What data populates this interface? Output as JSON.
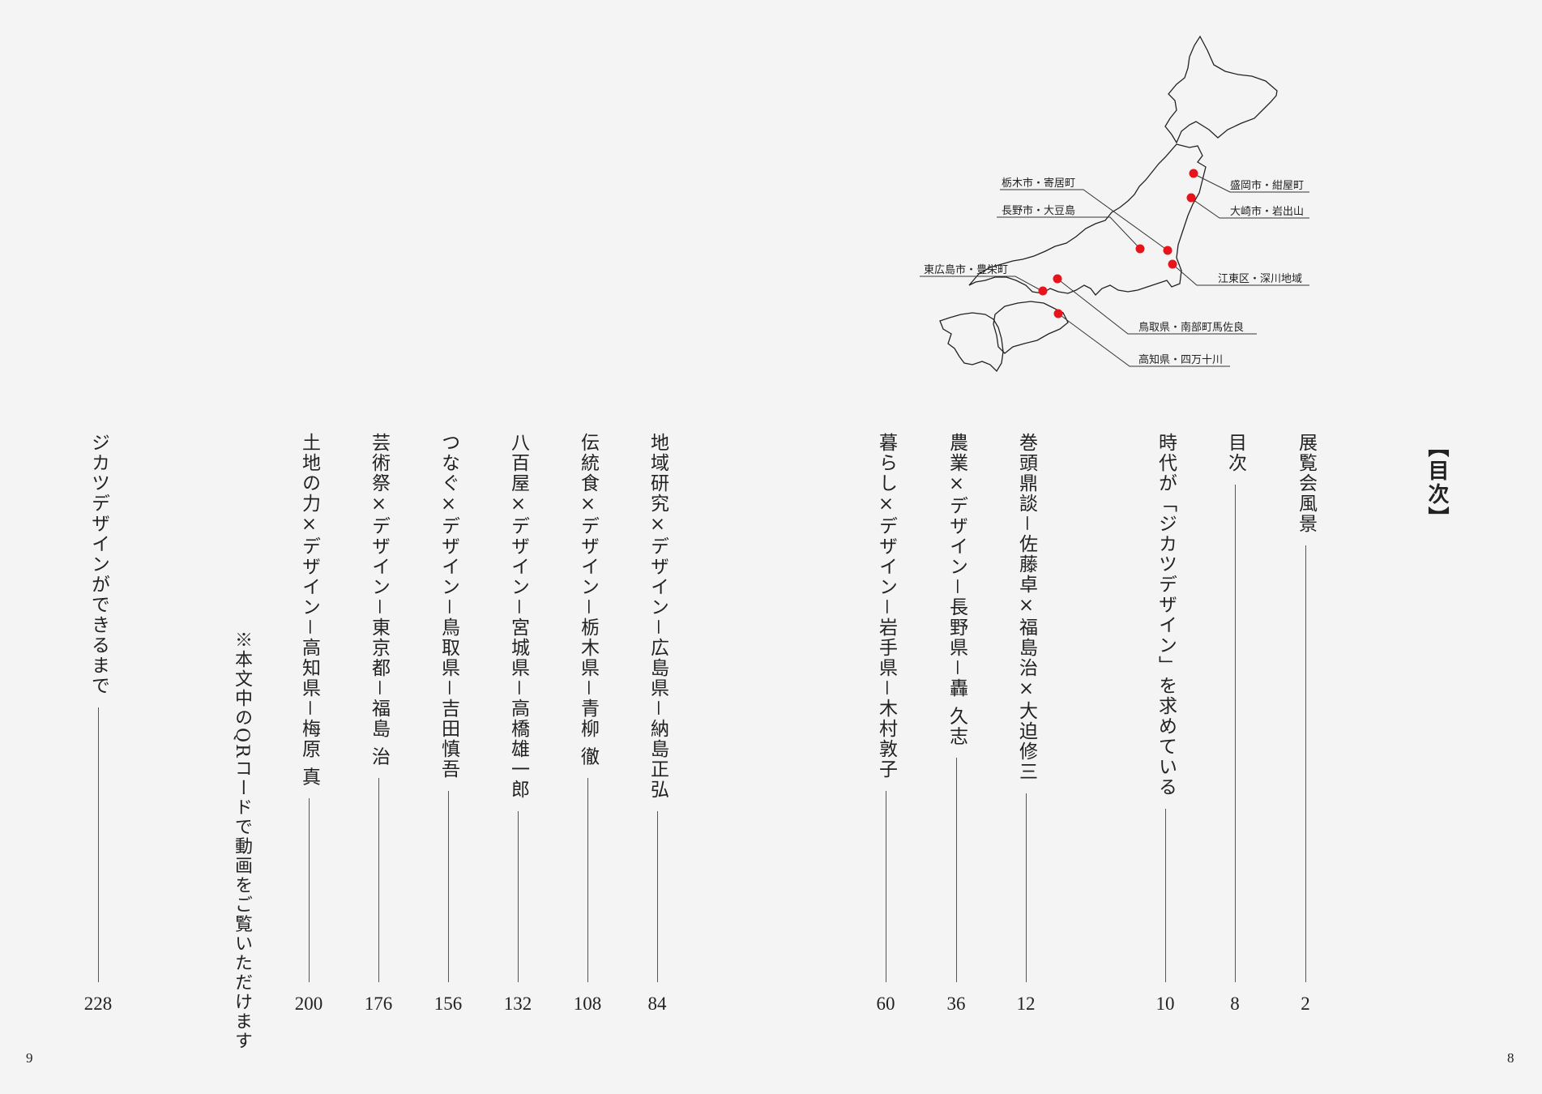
{
  "heading": "【目次】",
  "note": "※本文中のQRコードで動画をご覧いただけます",
  "folio_left": "9",
  "folio_right": "8",
  "toc": [
    {
      "title": "展覧会風景",
      "page": "2"
    },
    {
      "title": "目次",
      "page": "8"
    },
    {
      "title": "時代が「ジカツデザイン」を求めている",
      "page": "10"
    },
    {
      "title": "巻頭鼎談－佐藤卓×福島治×大迫修三",
      "page": "12"
    },
    {
      "title": "農業×デザイン－長野県－轟 久志",
      "page": "36"
    },
    {
      "title": "暮らし×デザイン－岩手県－木村敦子",
      "page": "60"
    },
    {
      "title": "地域研究×デザイン－広島県－納島正弘",
      "page": "84"
    },
    {
      "title": "伝統食×デザイン－栃木県－青柳 徹",
      "page": "108"
    },
    {
      "title": "八百屋×デザイン－宮城県－高橋雄一郎",
      "page": "132"
    },
    {
      "title": "つなぐ×デザイン－鳥取県－吉田慎吾",
      "page": "156"
    },
    {
      "title": "芸術祭×デザイン－東京都－福島 治",
      "page": "176"
    },
    {
      "title": "土地の力×デザイン－高知県－梅原 真",
      "page": "200"
    },
    {
      "title": "ジカツデザインができるまで",
      "page": "228"
    }
  ],
  "map": {
    "marker_color": "#e8141c",
    "labels": [
      "栃木市・寄居町",
      "長野市・大豆島",
      "東広島市・豊栄町",
      "盛岡市・紺屋町",
      "大崎市・岩出山",
      "江東区・深川地域",
      "鳥取県・南部町馬佐良",
      "高知県・四万十川"
    ]
  }
}
